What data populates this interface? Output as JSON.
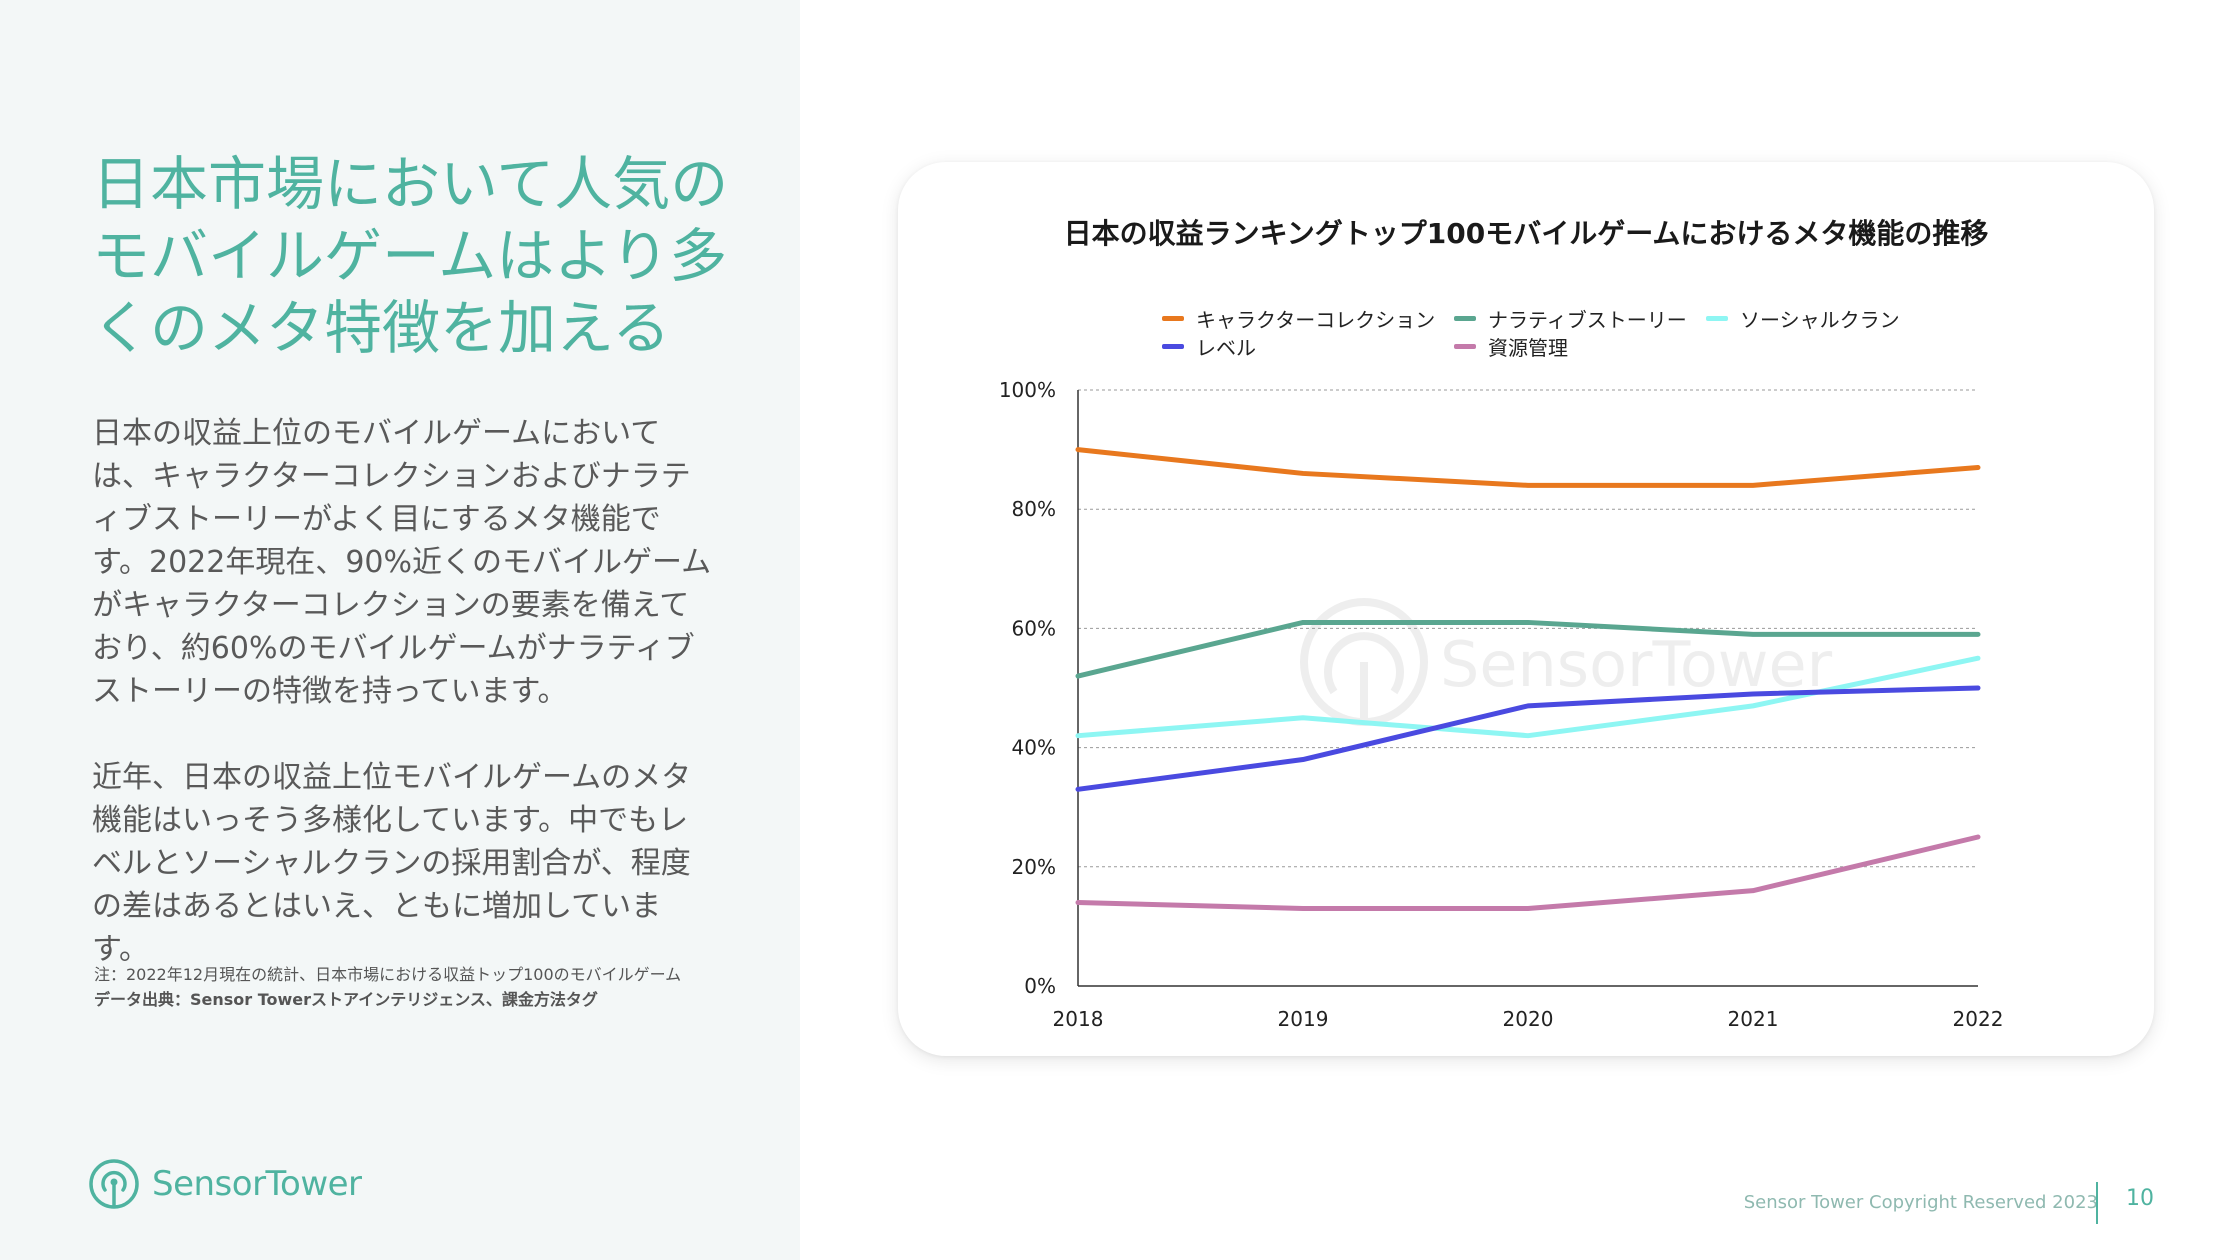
{
  "headline": "日本市場において人気のモバイルゲームはより多くのメタ特徴を加える",
  "paragraphs": [
    "日本の収益上位のモバイルゲームにおいては、キャラクターコレクションおよびナラティブストーリーがよく目にするメタ機能です。2022年現在、90%近くのモバイルゲームがキャラクターコレクションの要素を備えており、約60%のモバイルゲームがナラティブストーリーの特徴を持っています。",
    "近年、日本の収益上位モバイルゲームのメタ機能はいっそう多様化しています。中でもレベルとソーシャルクランの採用割合が、程度の差はあるとはいえ、ともに増加しています。"
  ],
  "notes": {
    "note": "注：2022年12月現在の統計、日本市場における収益トップ100のモバイルゲーム",
    "source": "データ出典：Sensor Towerストアインテリジェンス、課金方法タグ"
  },
  "logo": {
    "text": "SensorTower",
    "icon": "sensor-tower-logo-icon",
    "color": "#4fb3a0"
  },
  "watermark": {
    "text": "SensorTower"
  },
  "footer": {
    "copyright": "Sensor Tower Copyright Reserved 2023",
    "page_number": "10"
  },
  "colors": {
    "accent": "#4fb3a0",
    "panel_bg": "#f3f7f7"
  },
  "chart_data": {
    "type": "line",
    "title": "日本の収益ランキングトップ100モバイルゲームにおけるメタ機能の推移",
    "xlabel": "",
    "ylabel": "",
    "x": [
      "2018",
      "2019",
      "2020",
      "2021",
      "2022"
    ],
    "ylim": [
      0,
      100
    ],
    "yticks": [
      "0%",
      "20%",
      "40%",
      "60%",
      "80%",
      "100%"
    ],
    "grid": true,
    "legend_position": "top",
    "series": [
      {
        "name": "キャラクターコレクション",
        "color": "#e8781e",
        "values": [
          90,
          86,
          84,
          84,
          87
        ]
      },
      {
        "name": "ナラティブストーリー",
        "color": "#5aa690",
        "values": [
          52,
          61,
          61,
          59,
          59
        ]
      },
      {
        "name": "ソーシャルクラン",
        "color": "#8ef6f3",
        "values": [
          42,
          45,
          42,
          47,
          55
        ]
      },
      {
        "name": "レベル",
        "color": "#4a4ae0",
        "values": [
          33,
          38,
          47,
          49,
          50
        ]
      },
      {
        "name": "資源管理",
        "color": "#c47aaa",
        "values": [
          14,
          13,
          13,
          16,
          25
        ]
      }
    ]
  }
}
